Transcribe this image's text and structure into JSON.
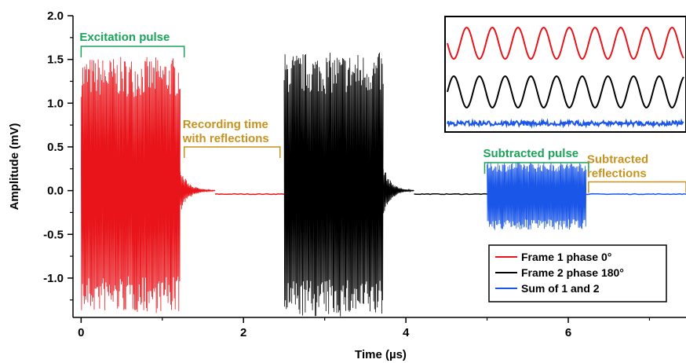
{
  "chart_data": {
    "type": "line",
    "title": "",
    "xlabel": "Time (µs)",
    "ylabel": "Amplitude (mV)",
    "xlim": [
      -0.1,
      7.45
    ],
    "ylim": [
      -1.45,
      2.0
    ],
    "xticks": [
      0,
      2,
      4,
      6
    ],
    "xtick_labels": [
      "0",
      "2",
      "4",
      "6"
    ],
    "yticks": [
      2.0,
      1.5,
      1.0,
      0.5,
      0.0,
      -0.5,
      -1.0
    ],
    "ytick_labels": [
      "2.0",
      "1.5",
      "1.0",
      "0.5",
      "0.0",
      "-0.5",
      "-1.0"
    ],
    "grid": false,
    "legend_position": "bottom-right",
    "series": [
      {
        "name": "Frame 1 phase 0°",
        "color": "#e8141a",
        "segments": [
          {
            "kind": "pulse",
            "x_start": 0.0,
            "x_end": 1.22,
            "y_min": -1.4,
            "y_max": 1.53,
            "baseline": 0.0
          },
          {
            "kind": "ringdown",
            "x_start": 1.22,
            "x_end": 1.65,
            "amplitude": 0.25,
            "baseline": 0.0
          },
          {
            "kind": "flat",
            "x_start": 1.65,
            "x_end": 2.5,
            "y": -0.04
          }
        ]
      },
      {
        "name": "Frame 2 phase 180°",
        "color": "#000000",
        "segments": [
          {
            "kind": "pulse",
            "x_start": 2.5,
            "x_end": 3.72,
            "y_min": -1.45,
            "y_max": 1.58,
            "baseline": 0.0
          },
          {
            "kind": "ringdown",
            "x_start": 3.72,
            "x_end": 4.1,
            "amplitude": 0.3,
            "baseline": 0.0
          },
          {
            "kind": "flat",
            "x_start": 4.1,
            "x_end": 5.0,
            "y": -0.04
          }
        ]
      },
      {
        "name": "Sum of 1 and 2",
        "color": "#1a56e8",
        "segments": [
          {
            "kind": "pulse",
            "x_start": 5.0,
            "x_end": 6.22,
            "y_min": -0.45,
            "y_max": 0.33,
            "baseline": -0.05
          },
          {
            "kind": "flat",
            "x_start": 6.22,
            "x_end": 7.45,
            "y": -0.04
          }
        ]
      }
    ],
    "annotations": [
      {
        "text": "Excitation pulse",
        "color": "#1aa35a",
        "x_start": 0.0,
        "x_end": 1.27,
        "y": 1.65
      },
      {
        "text": "Recording time",
        "text2": "with reflections",
        "color": "#c8921e",
        "x_start": 1.27,
        "x_end": 2.45,
        "y": 0.5
      },
      {
        "text": "Subtracted pulse",
        "color": "#1aa35a",
        "x_start": 4.97,
        "x_end": 6.25,
        "y": 0.32
      },
      {
        "text": "Subtracted",
        "text2": "reflections",
        "color": "#c8921e",
        "x_start": 6.25,
        "x_end": 7.45,
        "y": 0.1
      }
    ],
    "inset": {
      "traces": [
        {
          "name": "Frame 1 phase 0°",
          "color": "#e8141a",
          "cycles": 9.2,
          "phase_deg": 180
        },
        {
          "name": "Frame 2 phase 180°",
          "color": "#000000",
          "cycles": 9.2,
          "phase_deg": 0
        },
        {
          "name": "Sum of 1 and 2",
          "color": "#1a56e8",
          "cycles": 0,
          "phase_deg": 0
        }
      ]
    }
  }
}
